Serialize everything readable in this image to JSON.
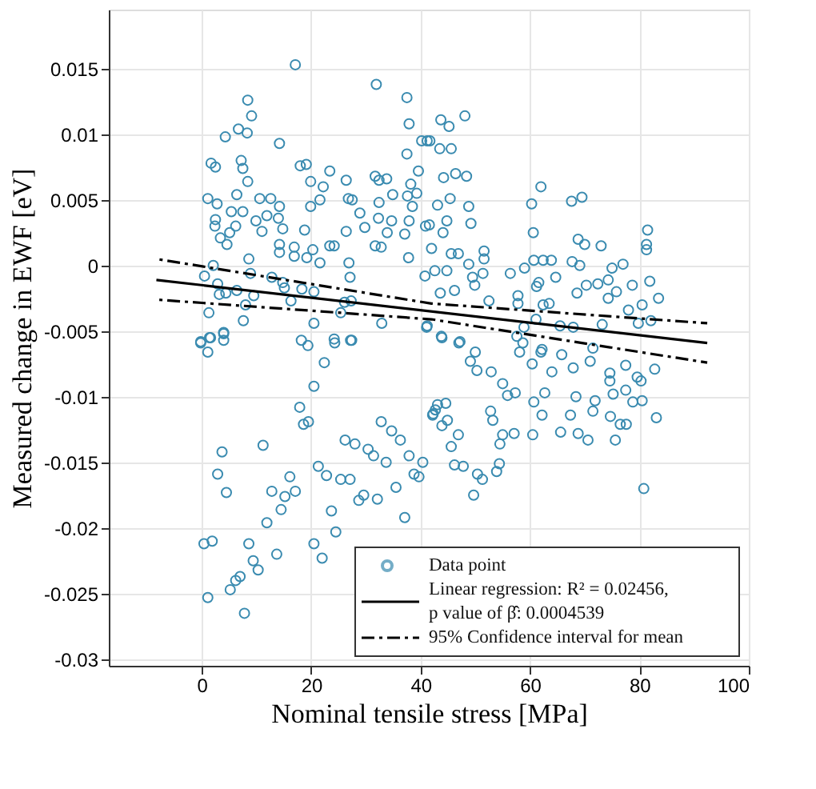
{
  "chart_data": {
    "type": "scatter",
    "xlabel": "Nominal tensile stress [MPa]",
    "ylabel": "Measured change in EWF [eV]",
    "xlim": [
      -17,
      100
    ],
    "xticks": [
      0,
      20,
      40,
      60,
      80,
      100
    ],
    "ylim": [
      -0.0305,
      0.0195
    ],
    "yticks": [
      -0.03,
      -0.025,
      -0.02,
      -0.015,
      -0.01,
      -0.005,
      0,
      0.005,
      0.01,
      0.015
    ],
    "grid": true,
    "legend": "bottom right",
    "marker": "circle",
    "series": [
      {
        "name": "Data point",
        "color": "#3a8bb0",
        "x": [
          17.1,
          8.4,
          9.1,
          4.3,
          6.7,
          8.3,
          14.2,
          1.7,
          2.5,
          7.2,
          7.5,
          8.4,
          6.4,
          1.1,
          2.8,
          5.4,
          7.5,
          10.6,
          12.6,
          14.2,
          2.5,
          2.4,
          6.2,
          9.9,
          11.9,
          14.0,
          14.8,
          11,
          5.1,
          3.4,
          4.6,
          14.2,
          16.9,
          16.9,
          14.2,
          8.6,
          2.1,
          0.5,
          8.9,
          12.8,
          2.9,
          4.4,
          6.4,
          9.5,
          3.2,
          8.0,
          14.8,
          15.1,
          16.3,
          1.3,
          7.6,
          4.0,
          -0.2,
          1.6,
          18,
          19.1,
          19.9,
          23.4,
          22.2,
          21.6,
          19.9,
          18.8,
          20.3,
          19.2,
          21.6,
          23.4,
          24.2,
          26.4,
          26.4,
          26.8,
          27.5,
          28.9,
          29.8,
          31.9,
          31.7,
          32.4,
          33.8,
          32.4,
          32.3,
          31.7,
          32.8,
          33.9,
          34.7,
          34.9,
          37.5,
          37.9,
          37.5,
          39.6,
          38.2,
          39.3,
          37.6,
          38.5,
          37.1,
          37.9,
          40.9,
          41.7,
          40.2,
          37.8,
          41.1,
          32.9,
          27.1,
          26.9,
          26.1,
          27.3,
          25.4,
          18.3,
          20.5,
          20.5,
          24.2,
          27.4,
          43.7,
          45.2,
          48.1,
          41.2,
          43.5,
          45.6,
          44.2,
          46.4,
          48.4,
          45.4,
          43.1,
          48.8,
          49.2,
          41.6,
          44.8,
          44.1,
          42,
          45.6,
          46.9,
          51.6,
          51.6,
          48.8,
          44.8,
          42.6,
          40.8,
          51.4,
          49.5,
          49.9,
          46.2,
          43.6,
          52.5,
          41.2,
          43.9,
          62,
          60.3,
          67.6,
          69.5,
          60.6,
          60.7,
          62.4,
          63.9,
          56.4,
          59,
          64.7,
          67.7,
          69.1,
          68.8,
          70,
          73,
          81.5,
          81.3,
          81.3,
          77,
          75,
          61.6,
          61.2,
          57.8,
          57.8,
          62.4,
          63.5,
          68.6,
          70.3,
          72.4,
          74.3,
          74.3,
          75.8,
          78.7,
          81.9,
          83.5,
          80.5,
          78,
          61.1,
          58.9,
          65.5,
          67.9,
          73.2,
          79.8,
          82.1,
          57.6,
          47.2,
          -0.2,
          1.4,
          1.1,
          4.0,
          4.0,
          18.2,
          19.4,
          22.4,
          24.3,
          27.2,
          20.5,
          17.9,
          18.6,
          19.5,
          3.7,
          11.2,
          2.9,
          4.5,
          12.8,
          16.1,
          15.2,
          17.1,
          14.5,
          11.9,
          21.3,
          22.8,
          25.4,
          27.1,
          23.7,
          24.5,
          20.5,
          22,
          26.2,
          28,
          30.4,
          31.4,
          32.8,
          34.7,
          36.3,
          33.7,
          37.9,
          40.4,
          38.8,
          39.7,
          35.5,
          29.6,
          28.7,
          32.1,
          37.1,
          0.4,
          1.9,
          8.6,
          9.4,
          10.3,
          13.7,
          7.0,
          6.2,
          5.2,
          1.1,
          7.8,
          42.2,
          42.7,
          43.8,
          47,
          50,
          49.1,
          50.3,
          52.9,
          55,
          57.3,
          55.9,
          52.8,
          53.2,
          42.3,
          43.1,
          44.6,
          44.9,
          43.9,
          46.9,
          45.6,
          46.2,
          47.8,
          50.4,
          51.3,
          49.7,
          53.9,
          54.4,
          54.5,
          57.1,
          55,
          60.5,
          60.7,
          62.2,
          62.7,
          65.6,
          67.4,
          68.8,
          70.6,
          68.4,
          71.9,
          71.5,
          74.6,
          75.2,
          77.5,
          74.7,
          76.5,
          77.6,
          75.6,
          78.8,
          80.5,
          83.1,
          80.8,
          80.3,
          82.8,
          79.6,
          64,
          60.4,
          65.8,
          67.9,
          62,
          58.1,
          71,
          74.6,
          77.5,
          71.5,
          58.7,
          62.2
        ],
        "values": [
          0.0153,
          0.0126,
          0.0114,
          0.0098,
          0.0104,
          0.0101,
          0.0093,
          0.0078,
          0.0075,
          0.008,
          0.0074,
          0.0064,
          0.0054,
          0.0051,
          0.0047,
          0.0041,
          0.0041,
          0.0051,
          0.0051,
          0.0045,
          0.0035,
          0.003,
          0.003,
          0.0034,
          0.0038,
          0.0036,
          0.0028,
          0.0026,
          0.0025,
          0.0021,
          0.0016,
          0.0016,
          0.0014,
          0.0007,
          0.001,
          0.0005,
          0.0,
          -0.0008,
          -0.0006,
          -0.0009,
          -0.0014,
          -0.0021,
          -0.0019,
          -0.0023,
          -0.0022,
          -0.003,
          -0.0013,
          -0.0017,
          -0.0027,
          -0.0036,
          -0.0042,
          -0.0051,
          -0.0058,
          -0.0055,
          0.0076,
          0.0077,
          0.0064,
          0.0072,
          0.006,
          0.005,
          0.0045,
          0.0027,
          0.0012,
          0.0006,
          0.0002,
          0.0015,
          0.0015,
          0.0065,
          0.0026,
          0.0051,
          0.005,
          0.004,
          0.0029,
          0.0138,
          0.0068,
          0.0065,
          0.0066,
          0.0048,
          0.0036,
          0.0015,
          0.0014,
          0.0025,
          0.0034,
          0.0054,
          0.0128,
          0.0108,
          0.0085,
          0.0072,
          0.0062,
          0.0055,
          0.0053,
          0.0045,
          0.0024,
          0.0034,
          0.003,
          0.0095,
          0.0095,
          0.0006,
          -0.0047,
          -0.0044,
          -0.0009,
          0.0002,
          -0.0028,
          -0.0027,
          -0.0036,
          -0.0018,
          -0.002,
          -0.0044,
          -0.0056,
          -0.0057,
          0.0111,
          0.0106,
          0.0114,
          0.0095,
          0.0089,
          0.0089,
          0.0067,
          0.007,
          0.0068,
          0.0051,
          0.0046,
          0.0045,
          0.0032,
          0.0031,
          0.0034,
          0.0025,
          0.0013,
          0.0009,
          0.0009,
          0.0011,
          0.0005,
          0.0001,
          -0.0004,
          -0.0004,
          -0.0008,
          -0.0006,
          -0.0009,
          -0.0015,
          -0.0019,
          -0.0021,
          -0.0027,
          -0.0046,
          -0.0055,
          0.006,
          0.0047,
          0.0049,
          0.0052,
          0.0025,
          0.0004,
          0.0004,
          0.0004,
          -0.0006,
          -0.0002,
          -0.0009,
          0.0003,
          0.0,
          0.002,
          0.0016,
          0.0015,
          0.0027,
          0.0016,
          0.0012,
          0.0001,
          -0.0002,
          -0.0013,
          -0.0016,
          -0.0023,
          -0.0029,
          -0.003,
          -0.0029,
          -0.0021,
          -0.0015,
          -0.0014,
          -0.0011,
          -0.0025,
          -0.002,
          -0.0015,
          -0.0012,
          -0.0025,
          -0.003,
          -0.0034,
          -0.0041,
          -0.0047,
          -0.0046,
          -0.0047,
          -0.0045,
          -0.0044,
          -0.0042,
          -0.0054,
          -0.0058,
          -0.0059,
          -0.0055,
          -0.0066,
          -0.0052,
          -0.0057,
          -0.0057,
          -0.0061,
          -0.0074,
          -0.0059,
          -0.0057,
          -0.0092,
          -0.0108,
          -0.0121,
          -0.0119,
          -0.0142,
          -0.0137,
          -0.0159,
          -0.0173,
          -0.0172,
          -0.0161,
          -0.0176,
          -0.0172,
          -0.0186,
          -0.0196,
          -0.0153,
          -0.016,
          -0.0163,
          -0.0163,
          -0.0187,
          -0.0203,
          -0.0212,
          -0.0223,
          -0.0133,
          -0.0136,
          -0.014,
          -0.0145,
          -0.0119,
          -0.0126,
          -0.0133,
          -0.015,
          -0.0145,
          -0.015,
          -0.0159,
          -0.0161,
          -0.0169,
          -0.0175,
          -0.0179,
          -0.0178,
          -0.0192,
          -0.0212,
          -0.021,
          -0.0212,
          -0.0225,
          -0.0232,
          -0.022,
          -0.0237,
          -0.024,
          -0.0247,
          -0.0253,
          -0.0265,
          -0.0114,
          -0.011,
          -0.0054,
          -0.0059,
          -0.0066,
          -0.0073,
          -0.008,
          -0.0081,
          -0.009,
          -0.0097,
          -0.0099,
          -0.0111,
          -0.0118,
          -0.0113,
          -0.0106,
          -0.0105,
          -0.0118,
          -0.0122,
          -0.0129,
          -0.0138,
          -0.0152,
          -0.0153,
          -0.0159,
          -0.0163,
          -0.0175,
          -0.0157,
          -0.0151,
          -0.0136,
          -0.0128,
          -0.0129,
          -0.0129,
          -0.0104,
          -0.0114,
          -0.0097,
          -0.0127,
          -0.0114,
          -0.0128,
          -0.0133,
          -0.01,
          -0.0103,
          -0.0111,
          -0.0088,
          -0.0098,
          -0.0095,
          -0.0115,
          -0.0121,
          -0.0121,
          -0.0133,
          -0.0104,
          -0.0103,
          -0.0116,
          -0.017,
          -0.0088,
          -0.0079,
          -0.0085,
          -0.0081,
          -0.0075,
          -0.0068,
          -0.0078,
          -0.0066,
          -0.0066,
          -0.0073,
          -0.0082,
          -0.0076,
          -0.0063,
          -0.0059,
          -0.0064
        ]
      },
      {
        "name": "Linear regression: R² = 0.02456,\np value of β̂: 0.0004539",
        "type": "line",
        "marker": "none",
        "color": "#000000",
        "line_style": "solid",
        "x": [
          -8.3,
          92.4
        ],
        "values": [
          -0.0011,
          -0.0059
        ]
      },
      {
        "name": "95% Confidence interval for mean",
        "type": "line",
        "marker": "none",
        "color": "#000000",
        "line_style": "dashed",
        "x": [
          -8.3,
          42,
          92.4
        ],
        "values": [
          0.0005,
          -0.0029,
          -0.0044
        ]
      },
      {
        "type": "line",
        "marker": "none",
        "color": "#000000",
        "line_style": "dashed",
        "x": [
          -8.3,
          42,
          92.4
        ],
        "values": [
          -0.0026,
          -0.0041,
          -0.0074
        ]
      }
    ]
  }
}
